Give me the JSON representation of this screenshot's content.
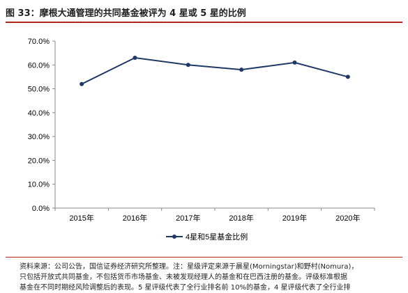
{
  "figure": {
    "title": "图 33：摩根大通管理的共同基金被评为 4 星或 5 星的比例"
  },
  "chart_data": {
    "type": "line",
    "categories": [
      "2015年",
      "2016年",
      "2017年",
      "2018年",
      "2019年",
      "2020年"
    ],
    "series": [
      {
        "name": "4星和5星基金比例",
        "values": [
          52.0,
          63.0,
          60.0,
          58.0,
          61.0,
          55.0
        ]
      }
    ],
    "ylim": [
      0,
      70
    ],
    "yticks": [
      "0.0%",
      "10.0%",
      "20.0%",
      "30.0%",
      "40.0%",
      "50.0%",
      "60.0%",
      "70.0%"
    ],
    "grid": false,
    "legend_position": "bottom",
    "line_color": "#1f3864"
  },
  "source": {
    "lines": [
      "资料来源：公司公告，国信证券经济研究所整理。注：星级评定来源于晨星(Morningstar)和野村(Nomura)，",
      "只包括开放式共同基金，不包括货币市场基金、未被发现经理人的基金和在巴西注册的基金。评级标准根据",
      "基金在不同时期经风险调整后的表现。5 星评级代表了全行业排名前 10%的基金，4 星评级代表了全行业排"
    ]
  }
}
